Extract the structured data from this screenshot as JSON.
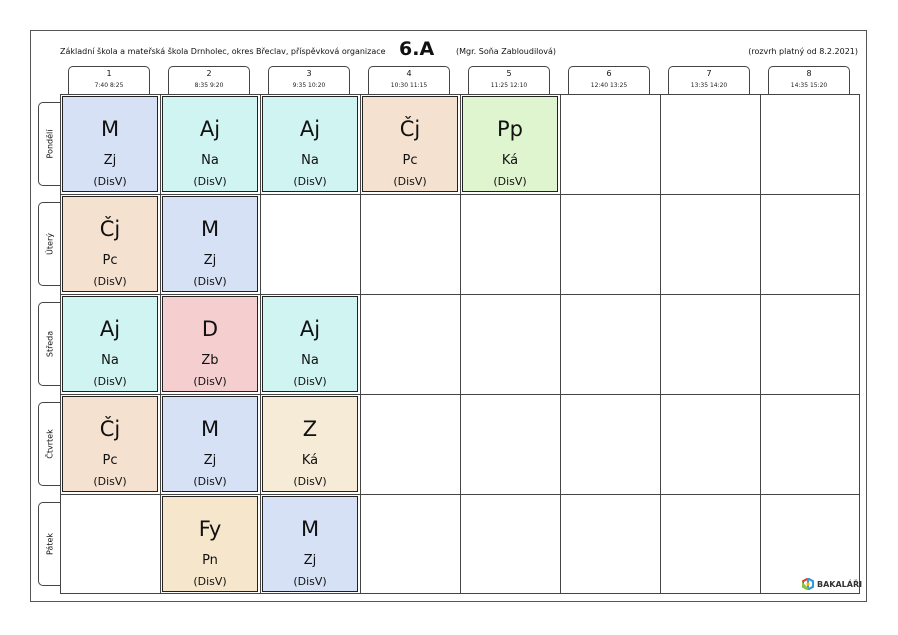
{
  "header": {
    "school": "Základní škola a mateřská škola Drnholec, okres Břeclav, příspěvková organizace",
    "class_name": "6.A",
    "teacher": "(Mgr. Soňa Zabloudilová)",
    "valid_from": "(rozvrh platný od 8.2.2021)"
  },
  "periods": [
    {
      "num": "1",
      "time": "7:40  8:25"
    },
    {
      "num": "2",
      "time": "8:35  9:20"
    },
    {
      "num": "3",
      "time": "9:35 10:20"
    },
    {
      "num": "4",
      "time": "10:30 11:15"
    },
    {
      "num": "5",
      "time": "11:25 12:10"
    },
    {
      "num": "6",
      "time": "12:40 13:25"
    },
    {
      "num": "7",
      "time": "13:35 14:20"
    },
    {
      "num": "8",
      "time": "14:35 15:20"
    }
  ],
  "days": [
    "Pondělí",
    "Úterý",
    "Středa",
    "Čtvrtek",
    "Pátek"
  ],
  "colors": {
    "M": "#d6e1f5",
    "Aj": "#d0f4f2",
    "Čj": "#f5e1cf",
    "Pp": "#dff5cf",
    "D": "#f5cfcf",
    "Z": "#f5ebd6",
    "Fy": "#f5e6cc"
  },
  "lessons": [
    {
      "day": 0,
      "period": 0,
      "subject": "M",
      "teacher": "Zj",
      "room": "(DisV)"
    },
    {
      "day": 0,
      "period": 1,
      "subject": "Aj",
      "teacher": "Na",
      "room": "(DisV)"
    },
    {
      "day": 0,
      "period": 2,
      "subject": "Aj",
      "teacher": "Na",
      "room": "(DisV)"
    },
    {
      "day": 0,
      "period": 3,
      "subject": "Čj",
      "teacher": "Pc",
      "room": "(DisV)"
    },
    {
      "day": 0,
      "period": 4,
      "subject": "Pp",
      "teacher": "Ká",
      "room": "(DisV)"
    },
    {
      "day": 1,
      "period": 0,
      "subject": "Čj",
      "teacher": "Pc",
      "room": "(DisV)"
    },
    {
      "day": 1,
      "period": 1,
      "subject": "M",
      "teacher": "Zj",
      "room": "(DisV)"
    },
    {
      "day": 2,
      "period": 0,
      "subject": "Aj",
      "teacher": "Na",
      "room": "(DisV)"
    },
    {
      "day": 2,
      "period": 1,
      "subject": "D",
      "teacher": "Zb",
      "room": "(DisV)"
    },
    {
      "day": 2,
      "period": 2,
      "subject": "Aj",
      "teacher": "Na",
      "room": "(DisV)"
    },
    {
      "day": 3,
      "period": 0,
      "subject": "Čj",
      "teacher": "Pc",
      "room": "(DisV)"
    },
    {
      "day": 3,
      "period": 1,
      "subject": "M",
      "teacher": "Zj",
      "room": "(DisV)"
    },
    {
      "day": 3,
      "period": 2,
      "subject": "Z",
      "teacher": "Ká",
      "room": "(DisV)"
    },
    {
      "day": 4,
      "period": 1,
      "subject": "Fy",
      "teacher": "Pn",
      "room": "(DisV)"
    },
    {
      "day": 4,
      "period": 2,
      "subject": "M",
      "teacher": "Zj",
      "room": "(DisV)"
    }
  ],
  "logo": {
    "text": "BAKALÁŘI",
    "icon": "bakalari-hexagon-icon"
  }
}
